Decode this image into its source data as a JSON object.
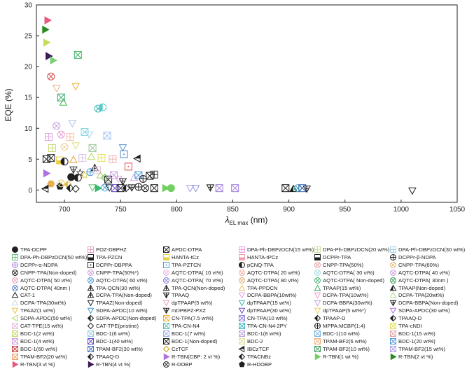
{
  "chart_data": {
    "type": "scatter",
    "xlabel": "λEL max (nm)",
    "xlabel_symbol": "λ",
    "xlabel_sub": "EL max",
    "xlabel_unit": " (nm)",
    "ylabel": "EQE (%)",
    "xlim": [
      675,
      1050
    ],
    "ylim": [
      -2,
      30
    ],
    "xticks": [
      "700",
      "750",
      "800",
      "850",
      "900",
      "950",
      "1000",
      "1050"
    ],
    "yticks": [
      "0",
      "5",
      "10",
      "15",
      "20",
      "25",
      "30"
    ],
    "points": [
      {
        "x": 685,
        "y": 27.5,
        "c": "#e8587c",
        "m": "tri-right"
      },
      {
        "x": 683,
        "y": 26.0,
        "c": "#2a8a22",
        "m": "tri-right"
      },
      {
        "x": 684,
        "y": 23.9,
        "c": "#c8dc5a",
        "m": "tri-right"
      },
      {
        "x": 686,
        "y": 21.7,
        "c": "#3a1a5a",
        "m": "tri-right"
      },
      {
        "x": 690,
        "y": 21.0,
        "c": "#7ad07a",
        "m": "tri-right"
      },
      {
        "x": 712,
        "y": 21.9,
        "c": "#45b86a",
        "m": "xsq"
      },
      {
        "x": 688,
        "y": 18.4,
        "c": "#d84a4a",
        "m": "xcirc"
      },
      {
        "x": 693,
        "y": 16.5,
        "c": "#f2b280",
        "m": "tri-down"
      },
      {
        "x": 710,
        "y": 16.8,
        "c": "#f0b23a",
        "m": "tri-down"
      },
      {
        "x": 697,
        "y": 15.0,
        "c": "#3aa86a",
        "m": "xsq"
      },
      {
        "x": 699,
        "y": 14.2,
        "c": "#4ab85a",
        "m": "tri-up"
      },
      {
        "x": 730,
        "y": 13.2,
        "c": "#3ab8b0",
        "m": "xcirc"
      },
      {
        "x": 734,
        "y": 13.4,
        "c": "#58c8c8",
        "m": "circle-half"
      },
      {
        "x": 693,
        "y": 10.4,
        "c": "#c8a0e0",
        "m": "xcirc"
      },
      {
        "x": 707,
        "y": 10.8,
        "c": "#a8c0e8",
        "m": "tri-down"
      },
      {
        "x": 686,
        "y": 8.6,
        "c": "#e0a0e0",
        "m": "sq-plus"
      },
      {
        "x": 697,
        "y": 9.0,
        "c": "#e8a0d8",
        "m": "xcirc"
      },
      {
        "x": 705,
        "y": 8.6,
        "c": "#f0c0a8",
        "m": "sq-plus"
      },
      {
        "x": 718,
        "y": 9.4,
        "c": "#90d8e0",
        "m": "xsq"
      },
      {
        "x": 722,
        "y": 9.0,
        "c": "#a8d0f0",
        "m": "tri-down"
      },
      {
        "x": 738,
        "y": 8.8,
        "c": "#a0c0f0",
        "m": "xsq"
      },
      {
        "x": 689,
        "y": 6.8,
        "c": "#c8d870",
        "m": "sq-plus"
      },
      {
        "x": 700,
        "y": 7.0,
        "c": "#f0d090",
        "m": "xcirc"
      },
      {
        "x": 710,
        "y": 7.2,
        "c": "#d8e080",
        "m": "tri-down"
      },
      {
        "x": 725,
        "y": 6.8,
        "c": "#a0c8a0",
        "m": "xsq"
      },
      {
        "x": 752,
        "y": 6.9,
        "c": "#5a9ad8",
        "m": "tri-down"
      },
      {
        "x": 684,
        "y": 5.0,
        "c": "#1a1a1a",
        "m": "xsq"
      },
      {
        "x": 688,
        "y": 5.2,
        "c": "#303030",
        "m": "xsq"
      },
      {
        "x": 696,
        "y": 4.8,
        "c": "#e8d040",
        "m": "sq-half"
      },
      {
        "x": 700,
        "y": 4.6,
        "c": "#202020",
        "m": "circle-half"
      },
      {
        "x": 708,
        "y": 4.9,
        "c": "#e8a030",
        "m": "tri-up"
      },
      {
        "x": 716,
        "y": 5.2,
        "c": "#d8c0e8",
        "m": "sq-plus"
      },
      {
        "x": 724,
        "y": 5.4,
        "c": "#b8d860",
        "m": "tri-up"
      },
      {
        "x": 733,
        "y": 5.2,
        "c": "#e8e050",
        "m": "sq-plus"
      },
      {
        "x": 743,
        "y": 5.0,
        "c": "#f0b0b0",
        "m": "sq-plus"
      },
      {
        "x": 753,
        "y": 5.8,
        "c": "#4a88c8",
        "m": "sq-dot"
      },
      {
        "x": 765,
        "y": 5.1,
        "c": "#202020",
        "m": "tri-left-half"
      },
      {
        "x": 684,
        "y": 2.7,
        "c": "#b070e0",
        "m": "tri-right"
      },
      {
        "x": 688,
        "y": 1.0,
        "c": "#e8b050",
        "m": "hex"
      },
      {
        "x": 696,
        "y": 0.6,
        "c": "#202020",
        "m": "pentagon"
      },
      {
        "x": 697,
        "y": 1.1,
        "c": "#e8d890",
        "m": "xcirc"
      },
      {
        "x": 703,
        "y": 0.9,
        "c": "#d8c040",
        "m": "diamond-half"
      },
      {
        "x": 706,
        "y": 2.1,
        "c": "#202020",
        "m": "circle"
      },
      {
        "x": 708,
        "y": 3.3,
        "c": "#303030",
        "m": "tri-down-cross"
      },
      {
        "x": 712,
        "y": 2.0,
        "c": "#202020",
        "m": "circle-half"
      },
      {
        "x": 714,
        "y": 2.8,
        "c": "#404040",
        "m": "star"
      },
      {
        "x": 718,
        "y": 2.4,
        "c": "#e0d060",
        "m": "star"
      },
      {
        "x": 723,
        "y": 2.9,
        "c": "#4a9ad8",
        "m": "circle-cross"
      },
      {
        "x": 727,
        "y": 3.6,
        "c": "#202020",
        "m": "tri-up-cross"
      },
      {
        "x": 729,
        "y": 3.2,
        "c": "#e8c0e8",
        "m": "sq-plus"
      },
      {
        "x": 732,
        "y": 2.4,
        "c": "#a8d060",
        "m": "tri-up"
      },
      {
        "x": 736,
        "y": 2.0,
        "c": "#60b850",
        "m": "diamond"
      },
      {
        "x": 739,
        "y": 1.7,
        "c": "#202020",
        "m": "xsq"
      },
      {
        "x": 744,
        "y": 2.4,
        "c": "#c8a0e0",
        "m": "xsq"
      },
      {
        "x": 748,
        "y": 1.8,
        "c": "#e8a0e0",
        "m": "tri-down"
      },
      {
        "x": 752,
        "y": 1.4,
        "c": "#202020",
        "m": "tri-down-cross"
      },
      {
        "x": 757,
        "y": 3.8,
        "c": "#e05050",
        "m": "sq-dot"
      },
      {
        "x": 762,
        "y": 2.0,
        "c": "#d8a0e0",
        "m": "tri-up"
      },
      {
        "x": 766,
        "y": 2.4,
        "c": "#4a9ad8",
        "m": "xsq"
      },
      {
        "x": 770,
        "y": 1.8,
        "c": "#202020",
        "m": "circle-cross"
      },
      {
        "x": 776,
        "y": 2.3,
        "c": "#202020",
        "m": "xsq"
      },
      {
        "x": 780,
        "y": 2.5,
        "c": "#303030",
        "m": "sq-plus"
      },
      {
        "x": 683,
        "y": 0.2,
        "c": "#202020",
        "m": "tri-left-half"
      },
      {
        "x": 705,
        "y": 0.3,
        "c": "#202020",
        "m": "diamond-half"
      },
      {
        "x": 710,
        "y": 0.2,
        "c": "#202020",
        "m": "diamond"
      },
      {
        "x": 725,
        "y": 0.4,
        "c": "#60c070",
        "m": "tri-down"
      },
      {
        "x": 730,
        "y": 0.3,
        "c": "#3ab870",
        "m": "tri-right"
      },
      {
        "x": 736,
        "y": 0.4,
        "c": "#50a8e0",
        "m": "xcirc"
      },
      {
        "x": 740,
        "y": 0.4,
        "c": "#202020",
        "m": "tri-down"
      },
      {
        "x": 745,
        "y": 0.3,
        "c": "#6a4ac8",
        "m": "xsq"
      },
      {
        "x": 750,
        "y": 0.3,
        "c": "#202020",
        "m": "xsq"
      },
      {
        "x": 755,
        "y": 0.3,
        "c": "#202020",
        "m": "diamond-half"
      },
      {
        "x": 760,
        "y": 0.4,
        "c": "#202020",
        "m": "tri-down-cross"
      },
      {
        "x": 766,
        "y": 0.5,
        "c": "#202020",
        "m": "circle-cross"
      },
      {
        "x": 772,
        "y": 0.3,
        "c": "#202020",
        "m": "xcirc"
      },
      {
        "x": 780,
        "y": 0.3,
        "c": "#202020",
        "m": "xsq"
      },
      {
        "x": 790,
        "y": 0.3,
        "c": "#70d060",
        "m": "tri-right"
      },
      {
        "x": 795,
        "y": 0.3,
        "c": "#70d060",
        "m": "circle"
      },
      {
        "x": 812,
        "y": 0.3,
        "c": "#a0a0f0",
        "m": "tri-down"
      },
      {
        "x": 817,
        "y": 0.3,
        "c": "#9090e8",
        "m": "tri-down"
      },
      {
        "x": 830,
        "y": 0.4,
        "c": "#202020",
        "m": "tri-down-cross"
      },
      {
        "x": 838,
        "y": 0.3,
        "c": "#a080e0",
        "m": "xsq"
      },
      {
        "x": 852,
        "y": 0.3,
        "c": "#a080e0",
        "m": "xsq"
      },
      {
        "x": 897,
        "y": 0.3,
        "c": "#202020",
        "m": "xsq"
      },
      {
        "x": 904,
        "y": 0.2,
        "c": "#202020",
        "m": "tri-up-half"
      },
      {
        "x": 908,
        "y": 0.3,
        "c": "#40a8b0",
        "m": "xcirc"
      },
      {
        "x": 912,
        "y": 0.3,
        "c": "#3a6ac0",
        "m": "xsq"
      },
      {
        "x": 916,
        "y": 0.2,
        "c": "#202020",
        "m": "tri-down-cross"
      },
      {
        "x": 1010,
        "y": -0.1,
        "c": "#202020",
        "m": "tri-down"
      }
    ],
    "legend": [
      {
        "label": "TPA-DCPP",
        "c": "#202020",
        "m": "circle"
      },
      {
        "label": "POZ-DBPHZ",
        "c": "#e8a0c8",
        "m": "sq-plus"
      },
      {
        "label": "APDC-DTPA",
        "c": "#202020",
        "m": "xsq"
      },
      {
        "label": "DPA-Ph-DBPzDCN(15 wt%)",
        "c": "#e8a0e0",
        "m": "sq-plus"
      },
      {
        "label": "DPA-Ph-DBPzDCN(20 wt%)",
        "c": "#c8e0a0",
        "m": "sq-plus"
      },
      {
        "label": "DPA-Ph-DBPzDCN(30 wt%)",
        "c": "#a0d0e8",
        "m": "sq-plus"
      },
      {
        "label": "DPA-Ph-DBPzDCN(50 wt%)",
        "c": "#70c080",
        "m": "sq-plus"
      },
      {
        "label": "TPA-PZCN",
        "c": "#202020",
        "m": "sq-half"
      },
      {
        "label": "HANTA-tCz",
        "c": "#e8d040",
        "m": "sq-half"
      },
      {
        "label": "HANTA-tPCz",
        "c": "#f0a0b0",
        "m": "sq-half"
      },
      {
        "label": "DCPPr-TPA",
        "c": "#202020",
        "m": "sq-half"
      },
      {
        "label": "DCPPr-β-NDPA",
        "c": "#202020",
        "m": "circle-cross"
      },
      {
        "label": "DCPPr-α-NDPA",
        "c": "#b080e0",
        "m": "circle-cross"
      },
      {
        "label": "DCPPr-DBPPA",
        "c": "#202020",
        "m": "sq-dot"
      },
      {
        "label": "TPA-PZTCN",
        "c": "#4a9ad8",
        "m": "sq-dot"
      },
      {
        "label": "pCNQ-TPA",
        "c": "#202020",
        "m": "circle-half"
      },
      {
        "label": "CNPP-TPA(50%)",
        "c": "#e8a0a0",
        "m": "xcirc"
      },
      {
        "label": "CNPP-TPA(60%)",
        "c": "#e0c080",
        "m": "xcirc"
      },
      {
        "label": "CNPP-TPA(Non-doped)",
        "c": "#202020",
        "m": "xcirc"
      },
      {
        "label": "CNPP-TPA(50%*)",
        "c": "#c8a0e0",
        "m": "xcirc"
      },
      {
        "label": "AQTC-DTPA( 10 vt%)",
        "c": "#f0b0e0",
        "m": "xcirc"
      },
      {
        "label": "AQTC-DTPA( 20 wt%)",
        "c": "#f0b0a0",
        "m": "xcirc"
      },
      {
        "label": "AQTC-DTPA( 30 vt%)",
        "c": "#a0e0e0",
        "m": "xcirc"
      },
      {
        "label": "AQTC-DTPA( 40 vt%)",
        "c": "#d0a0e0",
        "m": "xcirc"
      },
      {
        "label": "AQTC-DTPA( 50 vt%)",
        "c": "#e8a0c0",
        "m": "xcirc"
      },
      {
        "label": "AQTC-DTPA( 60 vt%)",
        "c": "#4a9ad8",
        "m": "xcirc"
      },
      {
        "label": "AQTC-DTPA( 70 vt%)",
        "c": "#8080e0",
        "m": "xcirc"
      },
      {
        "label": "AQTC-DTPA( 80 vt%)",
        "c": "#e0b080",
        "m": "xcirc"
      },
      {
        "label": "AQTC-DTPA( Non-doped)",
        "c": "#40b870",
        "m": "xcirc"
      },
      {
        "label": "AQTC-DTPA( 30nm )",
        "c": "#3a9a50",
        "m": "xcirc"
      },
      {
        "label": "AQTC-DTPA( 40nm )",
        "c": "#6080d0",
        "m": "xcirc"
      },
      {
        "label": "TPA-QCN(30 wt%)",
        "c": "#202020",
        "m": "tri-up-cross"
      },
      {
        "label": "TPA-QCN(Non-doped)",
        "c": "#202020",
        "m": "tri-up-cross"
      },
      {
        "label": "TPA-PPDCN",
        "c": "#f0c060",
        "m": "tri-up"
      },
      {
        "label": "TPAAP(15 wt%)",
        "c": "#30a860",
        "m": "tri-up"
      },
      {
        "label": "TPAAP(Non-doped)",
        "c": "#202020",
        "m": "tri-up-half"
      },
      {
        "label": "CAT-1",
        "c": "#202020",
        "m": "tri-up"
      },
      {
        "label": "DCPA-TPA(Non-doped)",
        "c": "#202020",
        "m": "tri-up-cross"
      },
      {
        "label": "TPAAQ",
        "c": "#202020",
        "m": "tri-down-cross"
      },
      {
        "label": "DCPA-BBPA(10wt%)",
        "c": "#e8a0e0",
        "m": "tri-down"
      },
      {
        "label": "DCPA-TPA(10wt%)",
        "c": "#e8a0c0",
        "m": "tri-down"
      },
      {
        "label": "DCPA-TPA(20wt%)",
        "c": "#b0d890",
        "m": "tri-up"
      },
      {
        "label": "DCPA-TPA(30wt%)",
        "c": "#c0e0e0",
        "m": "tri-up"
      },
      {
        "label": "TPAAZ(Non-doped)",
        "c": "#202020",
        "m": "tri-down"
      },
      {
        "label": "dpTPAAP(5 wt%)",
        "c": "#e8a0c0",
        "m": "tri-down"
      },
      {
        "label": "dpTPAAP(15 wt%)",
        "c": "#40b8b0",
        "m": "tri-down"
      },
      {
        "label": "DCPA-BBPA(30wt%)",
        "c": "#c0a0e0",
        "m": "tri-down"
      },
      {
        "label": "DCPA-BBPA(Non-doped)",
        "c": "#202020",
        "m": "tri-down-cross"
      },
      {
        "label": "TPAAZ(1 wt%)",
        "c": "#f0c040",
        "m": "tri-down"
      },
      {
        "label": "SDPA-APDC(10 wt%)",
        "c": "#3a9ad8",
        "m": "tri-down"
      },
      {
        "label": "mDPBPZ-PXZ",
        "c": "#202020",
        "m": "tri-down-cross"
      },
      {
        "label": "dpTPAAP(30 wt%)",
        "c": "#6a4ac8",
        "m": "tri-down"
      },
      {
        "label": "dpTPAAP(5 wt%*)",
        "c": "#f0d060",
        "m": "tri-down"
      },
      {
        "label": "SDPA-APDC(30 wt%)",
        "c": "#b070e0",
        "m": "tri-down"
      },
      {
        "label": "SDPA-APDC(50 wt%)",
        "c": "#a0e060",
        "m": "tri-left"
      },
      {
        "label": "SDPA-APDC(Non-doped)",
        "c": "#202020",
        "m": "diamond-half"
      },
      {
        "label": "CN-TPA(7.5 wt%)",
        "c": "#f0b030",
        "m": "xsq"
      },
      {
        "label": "CN-TPA(10 wt%)",
        "c": "#9080e0",
        "m": "xsq"
      },
      {
        "label": "TPAAP-D",
        "c": "#202020",
        "m": "diamond-half"
      },
      {
        "label": "TPAAQ-D",
        "c": "#202020",
        "m": "diamond-half"
      },
      {
        "label": "CAT-TPE(15 wt%)",
        "c": "#e8c0e0",
        "m": "xsq"
      },
      {
        "label": "CAT-TPE(pristine)",
        "c": "#202020",
        "m": "diamond"
      },
      {
        "label": "TPA-CN-N4",
        "c": "#60c0b0",
        "m": "xsq"
      },
      {
        "label": "TPA-CN-N4-2PY",
        "c": "#40b8c0",
        "m": "xsq"
      },
      {
        "label": "MPPA:MCBP(1:4)",
        "c": "#202020",
        "m": "circle-cross"
      },
      {
        "label": "TPA-cNDI",
        "c": "#e0e060",
        "m": "xsq"
      },
      {
        "label": "BDC-1(2 wt%)",
        "c": "#c8d870",
        "m": "xsq"
      },
      {
        "label": "BDC-1(6 wt%)",
        "c": "#90d0e0",
        "m": "xsq"
      },
      {
        "label": "BDC-1(7 wt%)",
        "c": "#a0b0e8",
        "m": "xsq"
      },
      {
        "label": "BDC-1(8 wt%)",
        "c": "#c0a0e0",
        "m": "xsq"
      },
      {
        "label": "BDC-1(10 wt%)",
        "c": "#7ab8e0",
        "m": "xsq"
      },
      {
        "label": "BDC-1(15 wt%)",
        "c": "#e8a0a0",
        "m": "xsq"
      },
      {
        "label": "BDC-1(4 wt%)",
        "c": "#d0a0e0",
        "m": "xsq"
      },
      {
        "label": "BDC-1(40 wt%)",
        "c": "#6a4ac8",
        "m": "xsq"
      },
      {
        "label": "BDC-1(Non-doped)",
        "c": "#202020",
        "m": "xsq"
      },
      {
        "label": "BDC-2",
        "c": "#e0e0a0",
        "m": "xsq"
      },
      {
        "label": "TPAM-BF2(6 wt%)",
        "c": "#f0b080",
        "m": "xsq"
      },
      {
        "label": "BDC-1(20 wt%)",
        "c": "#4a9ad8",
        "m": "xsq"
      },
      {
        "label": "BDC-1(60 wt%)",
        "c": "#d04040",
        "m": "xsq"
      },
      {
        "label": "TPAM-BF2(30 wt%)",
        "c": "#4a78c8",
        "m": "xsq"
      },
      {
        "label": "CzTCF",
        "c": "#c8a000",
        "m": "diamond"
      },
      {
        "label": "IBCzTCF",
        "c": "#202020",
        "m": "tri-left-half"
      },
      {
        "label": "TPAM-BF2(10 wt%)",
        "c": "#40a060",
        "m": "xsq"
      },
      {
        "label": "TPAM-BF2(15 wt%)",
        "c": "#b0a0e8",
        "m": "xsq"
      },
      {
        "label": "TPAM-BF2(20 wt%)",
        "c": "#f0a070",
        "m": "xsq"
      },
      {
        "label": "TPAAQ-D",
        "c": "#202020",
        "m": "diamond-half"
      },
      {
        "label": "R-TBN(CBP: 2 vt %)",
        "c": "#b070e0",
        "m": "tri-right"
      },
      {
        "label": "TPACNBz",
        "c": "#202020",
        "m": "diamond-half"
      },
      {
        "label": "R-TBN(1 wt %)",
        "c": "#70d060",
        "m": "tri-right"
      },
      {
        "label": "R-TBN(2 vt %)",
        "c": "#2a8a22",
        "m": "tri-right"
      },
      {
        "label": "R-TBN(3 vt %)",
        "c": "#e8587c",
        "m": "tri-right"
      },
      {
        "label": "R-TBN(4 vt %)",
        "c": "#3a1a5a",
        "m": "tri-right"
      },
      {
        "label": "R-DOBP",
        "c": "#202020",
        "m": "xcirc"
      },
      {
        "label": "R-HDOBP",
        "c": "#202020",
        "m": "pentagon"
      }
    ]
  }
}
